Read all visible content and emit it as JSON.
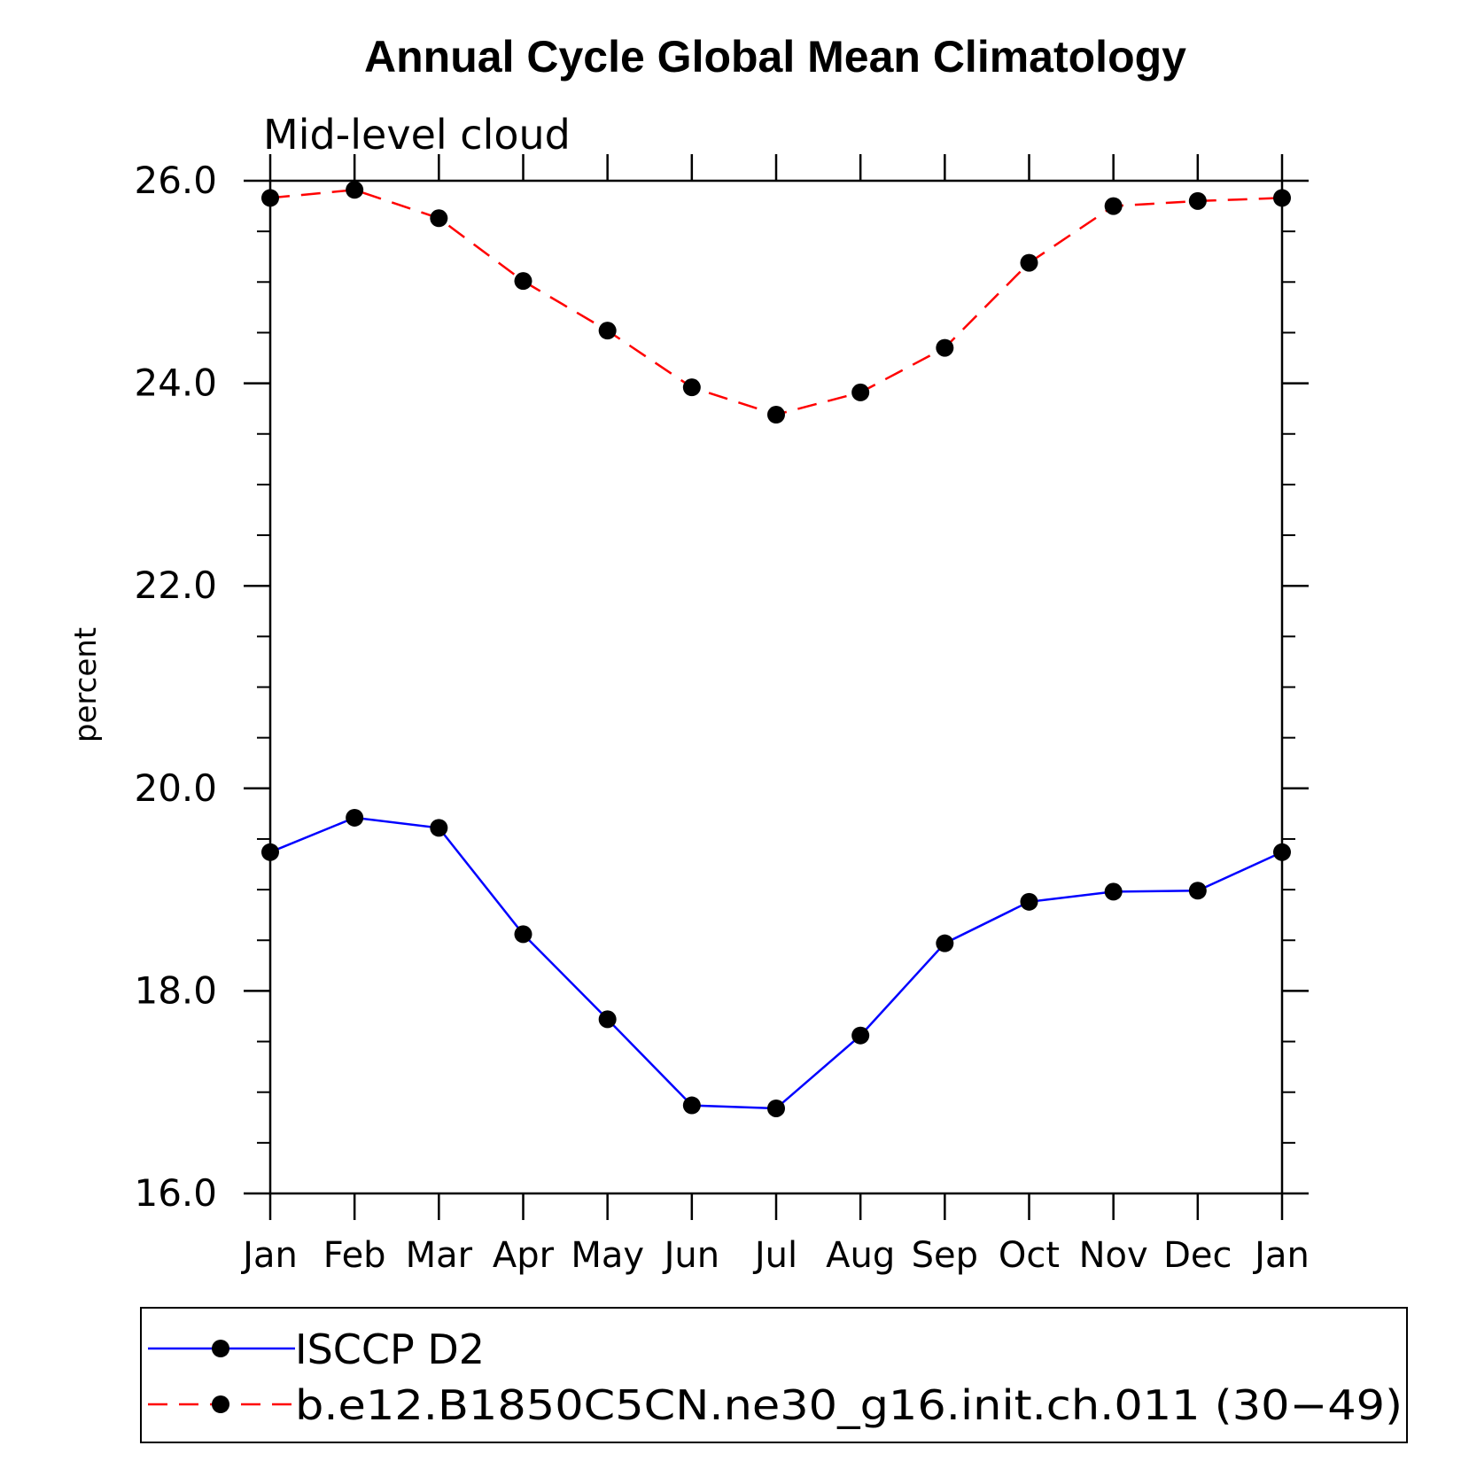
{
  "chart_data": {
    "type": "line",
    "title": "Annual Cycle Global Mean Climatology",
    "subtitle": "Mid-level cloud",
    "xlabel": "",
    "ylabel": "percent",
    "categories": [
      "Jan",
      "Feb",
      "Mar",
      "Apr",
      "May",
      "Jun",
      "Jul",
      "Aug",
      "Sep",
      "Oct",
      "Nov",
      "Dec",
      "Jan"
    ],
    "ylim": [
      16.0,
      26.0
    ],
    "yticks": [
      16.0,
      18.0,
      20.0,
      22.0,
      24.0,
      26.0
    ],
    "ytick_labels": [
      "16.0",
      "18.0",
      "20.0",
      "22.0",
      "24.0",
      "26.0"
    ],
    "grid": false,
    "legend_position": "bottom",
    "series": [
      {
        "name": "ISCCP D2",
        "color": "#0000ff",
        "dash": "solid",
        "marker": "dot",
        "values": [
          19.37,
          19.71,
          19.61,
          18.56,
          17.72,
          16.87,
          16.84,
          17.56,
          18.47,
          18.88,
          18.98,
          18.99,
          19.37
        ]
      },
      {
        "name": "b.e12.B1850C5CN.ne30_g16.init.ch.011 (30−49)",
        "color": "#ff0000",
        "dash": "dashed",
        "marker": "dot",
        "values": [
          25.83,
          25.91,
          25.63,
          25.01,
          24.52,
          23.96,
          23.69,
          23.91,
          24.35,
          25.19,
          25.75,
          25.8,
          25.83
        ]
      }
    ]
  }
}
